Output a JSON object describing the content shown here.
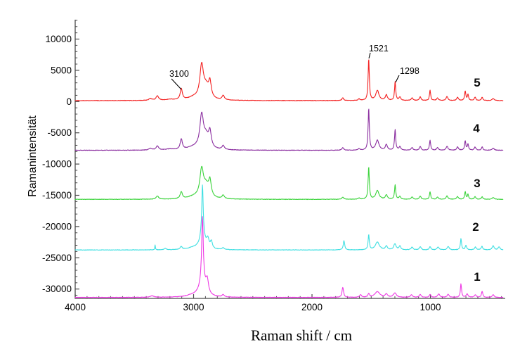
{
  "figure": {
    "background": "#ffffff"
  },
  "chart_data": {
    "type": "line",
    "title": "",
    "xlabel": "Raman shift / cm",
    "ylabel": "Ramanintensität",
    "axis_color": "#4a4a4a",
    "text_color": "#000000",
    "grid": false,
    "legend_position": "none",
    "x_axis": {
      "left_value": 4000,
      "right_value": 386,
      "major_ticks": [
        4000,
        3000,
        2000,
        1000
      ],
      "minor_tick_step": 100
    },
    "y_axis": {
      "min": -31500,
      "max": 13100,
      "major_ticks": [
        10000,
        5000,
        0,
        -5000,
        -10000,
        -15000,
        -20000,
        -25000,
        -30000
      ],
      "minor_tick_step": 1000
    },
    "annotations": [
      {
        "text": "3100",
        "text_x": 241,
        "text_y": 109,
        "line": [
          244,
          112,
          258,
          127
        ]
      },
      {
        "text": "1521",
        "text_x": 525,
        "text_y": 73,
        "line": [
          527,
          75,
          525,
          83
        ]
      },
      {
        "text": "1298",
        "text_x": 569,
        "text_y": 105,
        "line": [
          568,
          107,
          563,
          117
        ]
      }
    ],
    "series": [
      {
        "name": "5",
        "color": "#f32222",
        "baseline": 150,
        "seed": 1,
        "noise": 70,
        "label_x": 679,
        "label_y": 123,
        "peaks": [
          [
            3365,
            300,
            15
          ],
          [
            3306,
            700,
            13
          ],
          [
            3200,
            150,
            40
          ],
          [
            3104,
            1750,
            11
          ],
          [
            3000,
            400,
            60
          ],
          [
            2932,
            5100,
            18
          ],
          [
            2895,
            1900,
            30
          ],
          [
            2862,
            2400,
            13
          ],
          [
            2750,
            700,
            12
          ],
          [
            1740,
            420,
            9
          ],
          [
            1603,
            250,
            9
          ],
          [
            1521,
            6650,
            6
          ],
          [
            1448,
            1600,
            16
          ],
          [
            1372,
            900,
            10
          ],
          [
            1298,
            3000,
            6
          ],
          [
            1258,
            550,
            9
          ],
          [
            1155,
            420,
            9
          ],
          [
            1086,
            600,
            8
          ],
          [
            1003,
            1650,
            6
          ],
          [
            940,
            420,
            9
          ],
          [
            860,
            650,
            9
          ],
          [
            771,
            550,
            8
          ],
          [
            706,
            1500,
            6
          ],
          [
            683,
            950,
            6
          ],
          [
            623,
            520,
            8
          ],
          [
            563,
            520,
            7
          ],
          [
            470,
            350,
            10
          ]
        ]
      },
      {
        "name": "4",
        "color": "#8b2fa0",
        "baseline": -7800,
        "seed": 2,
        "noise": 70,
        "label_x": 678,
        "label_y": 188,
        "peaks": [
          [
            3365,
            280,
            15
          ],
          [
            3306,
            650,
            13
          ],
          [
            3200,
            150,
            40
          ],
          [
            3104,
            1650,
            11
          ],
          [
            3000,
            400,
            60
          ],
          [
            2932,
            5100,
            18
          ],
          [
            2895,
            1900,
            30
          ],
          [
            2862,
            2400,
            13
          ],
          [
            2750,
            650,
            12
          ],
          [
            1740,
            420,
            9
          ],
          [
            1603,
            250,
            9
          ],
          [
            1521,
            6650,
            6
          ],
          [
            1448,
            1600,
            16
          ],
          [
            1372,
            900,
            10
          ],
          [
            1298,
            3300,
            6
          ],
          [
            1258,
            550,
            9
          ],
          [
            1155,
            420,
            9
          ],
          [
            1086,
            600,
            8
          ],
          [
            1003,
            1600,
            6
          ],
          [
            940,
            420,
            9
          ],
          [
            860,
            650,
            9
          ],
          [
            771,
            550,
            8
          ],
          [
            706,
            1500,
            6
          ],
          [
            683,
            950,
            6
          ],
          [
            623,
            520,
            8
          ],
          [
            563,
            520,
            7
          ],
          [
            470,
            350,
            10
          ]
        ]
      },
      {
        "name": "3",
        "color": "#3bd33b",
        "baseline": -15650,
        "seed": 3,
        "noise": 70,
        "label_x": 679,
        "label_y": 266,
        "peaks": [
          [
            3306,
            500,
            13
          ],
          [
            3104,
            1100,
            11
          ],
          [
            3000,
            350,
            60
          ],
          [
            2932,
            4300,
            18
          ],
          [
            2895,
            1900,
            30
          ],
          [
            2862,
            2400,
            13
          ],
          [
            2750,
            550,
            12
          ],
          [
            1740,
            350,
            9
          ],
          [
            1603,
            200,
            9
          ],
          [
            1521,
            5150,
            6
          ],
          [
            1448,
            1400,
            16
          ],
          [
            1372,
            700,
            10
          ],
          [
            1298,
            2300,
            6
          ],
          [
            1258,
            450,
            9
          ],
          [
            1155,
            350,
            9
          ],
          [
            1086,
            500,
            8
          ],
          [
            1003,
            1200,
            6
          ],
          [
            940,
            350,
            9
          ],
          [
            860,
            550,
            9
          ],
          [
            771,
            450,
            8
          ],
          [
            706,
            1200,
            6
          ],
          [
            683,
            800,
            6
          ],
          [
            623,
            420,
            8
          ],
          [
            563,
            420,
            7
          ],
          [
            470,
            300,
            10
          ]
        ]
      },
      {
        "name": "2",
        "color": "#40dfe2",
        "baseline": -23750,
        "seed": 4,
        "noise": 70,
        "label_x": 677,
        "label_y": 328,
        "peaks": [
          [
            3325,
            800,
            3
          ],
          [
            3240,
            250,
            10
          ],
          [
            3105,
            450,
            10
          ],
          [
            3000,
            300,
            60
          ],
          [
            2925,
            7900,
            7
          ],
          [
            2925,
            2300,
            26
          ],
          [
            2880,
            1300,
            12
          ],
          [
            2850,
            1100,
            10
          ],
          [
            2750,
            300,
            10
          ],
          [
            1730,
            1500,
            7
          ],
          [
            1521,
            2400,
            6
          ],
          [
            1448,
            1250,
            20
          ],
          [
            1372,
            600,
            10
          ],
          [
            1300,
            950,
            12
          ],
          [
            1258,
            600,
            9
          ],
          [
            1155,
            450,
            10
          ],
          [
            1086,
            500,
            9
          ],
          [
            1003,
            500,
            8
          ],
          [
            935,
            450,
            10
          ],
          [
            850,
            550,
            10
          ],
          [
            742,
            1800,
            6
          ],
          [
            700,
            700,
            7
          ],
          [
            620,
            450,
            9
          ],
          [
            565,
            550,
            8
          ],
          [
            470,
            650,
            10
          ],
          [
            420,
            500,
            9
          ]
        ]
      },
      {
        "name": "1",
        "color": "#ee3be4",
        "baseline": -31350,
        "seed": 5,
        "noise": 70,
        "label_x": 679,
        "label_y": 399,
        "peaks": [
          [
            3350,
            250,
            18
          ],
          [
            3000,
            300,
            70
          ],
          [
            2925,
            10200,
            8
          ],
          [
            2925,
            2400,
            30
          ],
          [
            2885,
            2100,
            13
          ],
          [
            2750,
            350,
            12
          ],
          [
            1740,
            1600,
            8
          ],
          [
            1590,
            400,
            10
          ],
          [
            1521,
            550,
            8
          ],
          [
            1448,
            900,
            26
          ],
          [
            1372,
            500,
            12
          ],
          [
            1300,
            700,
            15
          ],
          [
            1160,
            420,
            11
          ],
          [
            1086,
            500,
            9
          ],
          [
            1003,
            480,
            8
          ],
          [
            930,
            520,
            11
          ],
          [
            850,
            480,
            10
          ],
          [
            742,
            2150,
            6
          ],
          [
            690,
            580,
            9
          ],
          [
            620,
            420,
            9
          ],
          [
            563,
            950,
            7
          ],
          [
            470,
            450,
            9
          ]
        ]
      }
    ]
  }
}
